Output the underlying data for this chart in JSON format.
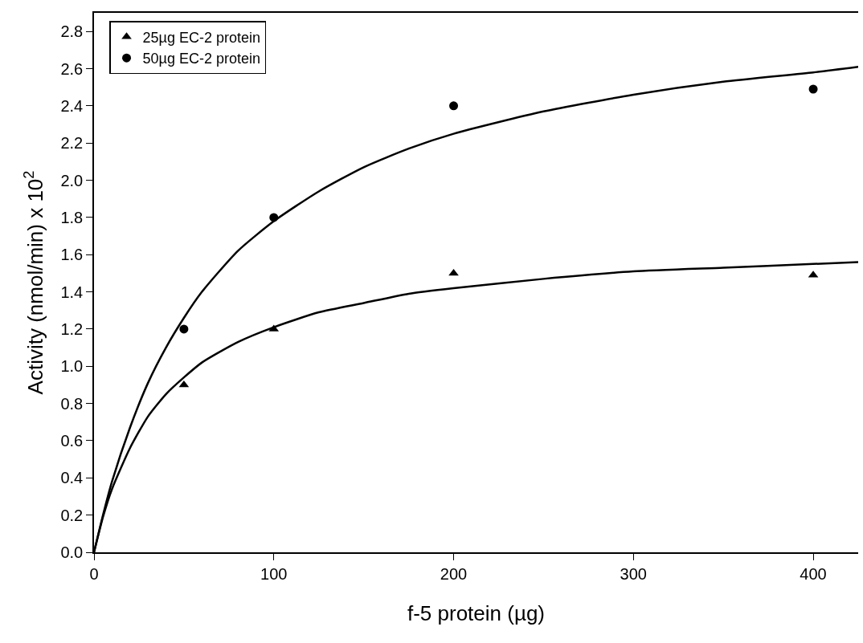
{
  "chart_data": {
    "type": "scatter",
    "xlabel": "f-5 protein (µg)",
    "ylabel": "Activity (nmol/min) x 10$^{2}$",
    "xlim": [
      0,
      425
    ],
    "xticks": [
      0,
      100,
      200,
      300,
      400
    ],
    "ylim": [
      0,
      2.9
    ],
    "yticks": [
      {
        "value": 0,
        "label": "0.0"
      },
      0.2,
      0.4,
      0.6,
      0.8,
      {
        "value": 1,
        "label": "1.0"
      },
      1.2,
      1.4,
      1.6,
      1.8,
      {
        "value": 2,
        "label": "2.0"
      },
      2.2,
      2.4,
      2.6,
      2.8
    ],
    "legend": "top left",
    "series": [
      {
        "name": "25µg EC-2 protein",
        "marker": "triangle",
        "color": "#000000",
        "x": [
          50,
          100,
          200,
          400
        ],
        "values": [
          0.9,
          1.2,
          1.5,
          1.49
        ]
      },
      {
        "name": "50µg EC-2 protein",
        "marker": "circle",
        "color": "#000000",
        "x": [
          50,
          100,
          200,
          400
        ],
        "values": [
          1.2,
          1.8,
          2.4,
          2.49
        ]
      },
      {
        "type": "line",
        "color": "#000000",
        "x": [
          0,
          5,
          10,
          20,
          30,
          40,
          50,
          60,
          80,
          100,
          125,
          150,
          175,
          200,
          250,
          300,
          350,
          400,
          425
        ],
        "values": [
          0,
          0.19,
          0.34,
          0.56,
          0.73,
          0.85,
          0.94,
          1.02,
          1.13,
          1.21,
          1.29,
          1.34,
          1.39,
          1.42,
          1.47,
          1.51,
          1.53,
          1.55,
          1.56
        ]
      },
      {
        "type": "line",
        "color": "#000000",
        "x": [
          0,
          5,
          10,
          20,
          30,
          40,
          50,
          60,
          80,
          100,
          125,
          150,
          175,
          200,
          250,
          300,
          350,
          400,
          425
        ],
        "values": [
          0,
          0.2,
          0.38,
          0.67,
          0.91,
          1.1,
          1.26,
          1.4,
          1.62,
          1.78,
          1.94,
          2.07,
          2.17,
          2.25,
          2.37,
          2.46,
          2.53,
          2.58,
          2.61
        ]
      }
    ]
  }
}
